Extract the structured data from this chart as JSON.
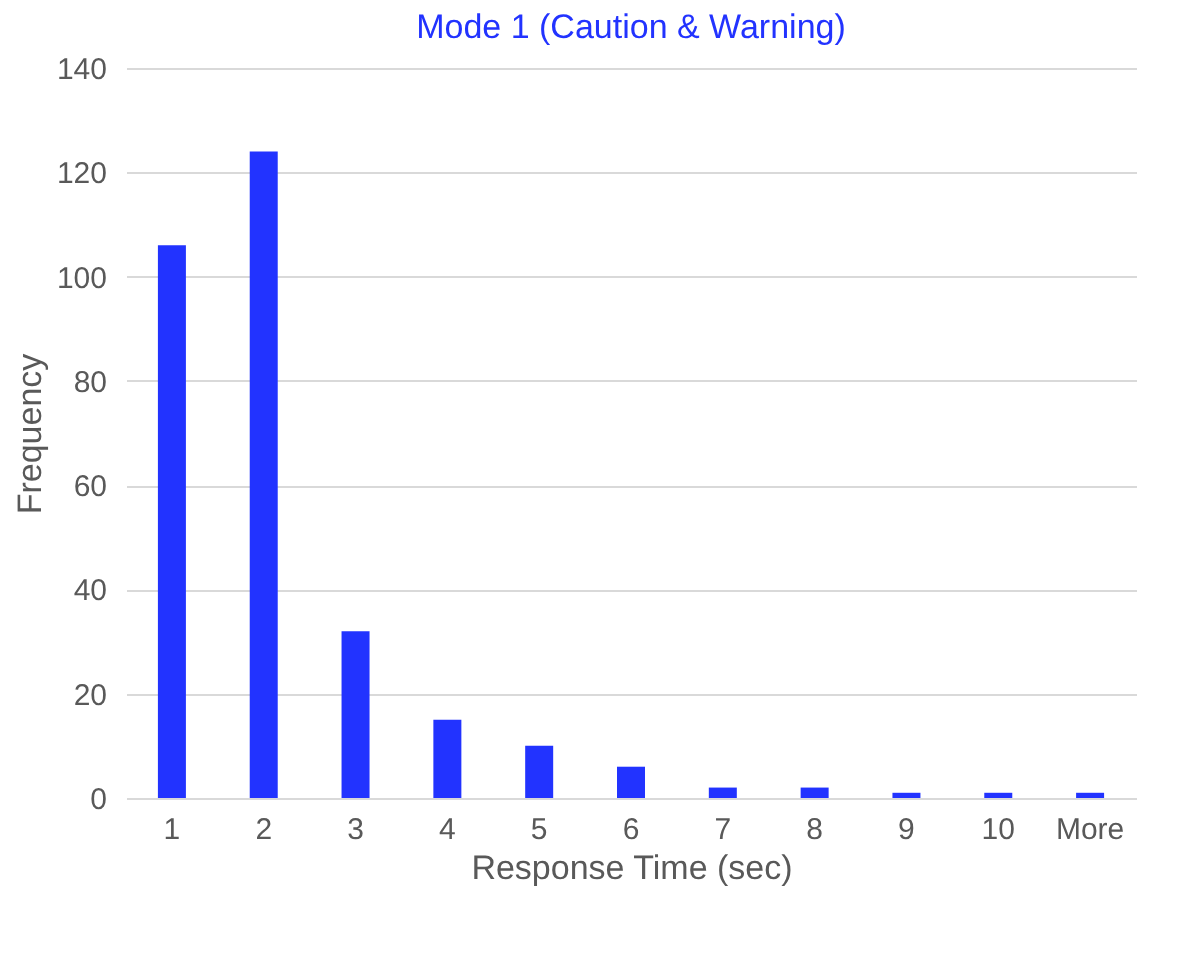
{
  "chart_data": {
    "type": "bar",
    "title": "Mode 1 (Caution & Warning)",
    "xlabel": "Response Time (sec)",
    "ylabel": "Frequency",
    "categories": [
      "1",
      "2",
      "3",
      "4",
      "5",
      "6",
      "7",
      "8",
      "9",
      "10",
      "More"
    ],
    "values": [
      106,
      124,
      32,
      15,
      10,
      6,
      2,
      2,
      1,
      1,
      1
    ],
    "color": "#2233ff",
    "ylim": [
      0,
      140
    ],
    "yticks": [
      0,
      20,
      40,
      60,
      80,
      100,
      120,
      140
    ],
    "grid": "y"
  }
}
